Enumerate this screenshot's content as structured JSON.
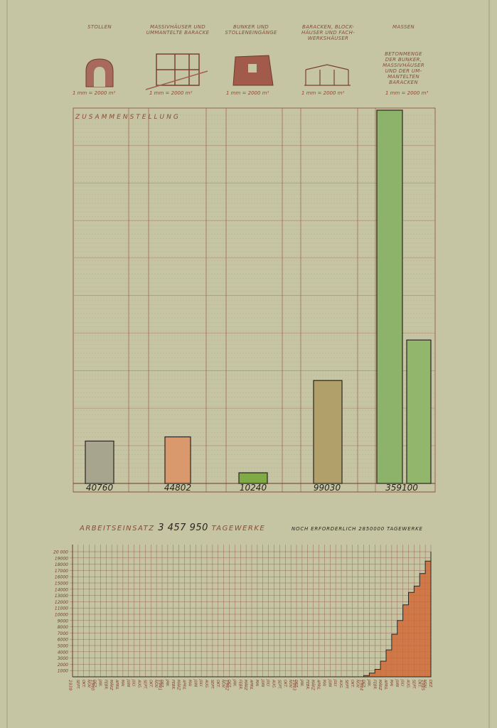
{
  "columns": [
    {
      "header": "STOLLEN",
      "scale": "1 mm = 2000 m²",
      "icon": "tunnel-icon"
    },
    {
      "header": "MASSIVHÄUSER UND\nUMMANTELTE BARACKE",
      "scale": "1 mm = 2000 m²",
      "icon": "building-frame-icon"
    },
    {
      "header": "BUNKER UND\nSTOLLENEINGÄNGE",
      "scale": "1 mm = 2000 m²",
      "icon": "bunker-icon"
    },
    {
      "header": "BARACKEN, BLOCK-\nHÄUSER UND FACH-\nWERKSHÄUSER",
      "scale": "1 mm = 2000 m²",
      "icon": "barracks-icon"
    },
    {
      "header": "MASSEN",
      "scale": "1 mm = 2000 m³",
      "icon": ""
    }
  ],
  "massen_note": "BETONMENGE\nDER BUNKER,\nMASSIVHÄUSER\nUND DER UM-\nMANTELTEN\nBARACKEN",
  "colors": {
    "paper": "#c6c5a3",
    "ink": "#8d4a34",
    "stollen": "#a8a58f",
    "massiv": "#d9996c",
    "bunker": "#7faa46",
    "baracken": "#b2a06a",
    "massen": "#8db36a",
    "beton": "#92b66c",
    "labor": "#d06a38"
  },
  "chart_data": [
    {
      "type": "bar",
      "title": "ZUSAMMENSTELLUNG",
      "categories": [
        "STOLLEN",
        "MASSIVHÄUSER UND UMMANTELTE BARACKE",
        "BUNKER UND STOLLENEINGÄNGE",
        "BARACKEN, BLOCKHÄUSER UND FACHWERKSHÄUSER",
        "MASSEN"
      ],
      "series": [
        {
          "values": [
            40760,
            44802,
            10240,
            99030,
            359100
          ]
        },
        {
          "values": [
            null,
            null,
            null,
            null,
            138000
          ]
        }
      ],
      "value_labels": [
        "40760",
        "44802",
        "10240",
        "99030",
        "359100"
      ],
      "ylim": [
        0,
        359100
      ],
      "grid": true
    },
    {
      "type": "area",
      "title": "ARBEITSEINSATZ",
      "total_value": "3 457 950",
      "total_unit": "TAGEWERKE",
      "note": "NOCH ERFORDERLICH 2850000 TAGEWERKE",
      "x": [
        "SEPT.",
        "OKT.",
        "NOV.",
        "DEZ.",
        "JAN.",
        "FEBR.",
        "MÄRZ",
        "APRIL",
        "MAI",
        "JUNI",
        "JULI",
        "AUG.",
        "SEPT.",
        "OKT.",
        "NOV.",
        "DEZ.",
        "JAN.",
        "FEBR.",
        "MÄRZ",
        "APRIL",
        "MAI",
        "JUNI",
        "JULI",
        "AUG.",
        "SEPT.",
        "OKT.",
        "NOV.",
        "DEZ.",
        "JAN.",
        "FEBR.",
        "MÄRZ",
        "APRIL",
        "MAI",
        "JUNI",
        "JULI",
        "AUG.",
        "SEPT.",
        "OKT.",
        "NOV.",
        "DEZ.",
        "JAN.",
        "FEBR.",
        "MÄRZ",
        "APRIL",
        "MAI",
        "JUNI",
        "JULI",
        "AUG.",
        "SEPT.",
        "OKT.",
        "NOV.",
        "DEZ.",
        "JAN.",
        "FEBR.",
        "MÄRZ",
        "APRIL",
        "MAI",
        "JUNI",
        "JULI",
        "AUG.",
        "SEPT.",
        "OKT.",
        "NOV.",
        "DEZ."
      ],
      "values": [
        0,
        0,
        0,
        0,
        0,
        0,
        0,
        0,
        0,
        0,
        0,
        0,
        0,
        0,
        0,
        0,
        0,
        0,
        0,
        0,
        0,
        0,
        0,
        0,
        0,
        0,
        0,
        0,
        0,
        0,
        0,
        0,
        0,
        0,
        0,
        0,
        0,
        0,
        0,
        0,
        0,
        0,
        0,
        0,
        0,
        0,
        0,
        0,
        0,
        0,
        0,
        0,
        200,
        600,
        1200,
        2500,
        4300,
        6800,
        9000,
        11500,
        13500,
        14500,
        16500,
        18500
      ],
      "final_value": 20000,
      "years": [
        {
          "label": "1939",
          "at": 0
        },
        {
          "label": "1940",
          "at": 4
        },
        {
          "label": "1941",
          "at": 16
        },
        {
          "label": "1942",
          "at": 28
        },
        {
          "label": "1943",
          "at": 40
        },
        {
          "label": "1944",
          "at": 52
        },
        {
          "label": "1945",
          "at": 63
        }
      ],
      "yticks": [
        1000,
        2000,
        3000,
        4000,
        5000,
        6000,
        7000,
        8000,
        9000,
        10000,
        11000,
        12000,
        13000,
        14000,
        15000,
        16000,
        17000,
        18000,
        19000,
        20000
      ],
      "ytick_labels": [
        "1000",
        "2000",
        "3000",
        "4000",
        "5000",
        "6000",
        "7000",
        "8000",
        "9000",
        "10000",
        "11000",
        "12000",
        "13000",
        "14000",
        "15000",
        "16000",
        "17000",
        "18000",
        "19000",
        "20 000"
      ],
      "ylim": [
        0,
        20000
      ],
      "grid": true
    }
  ]
}
